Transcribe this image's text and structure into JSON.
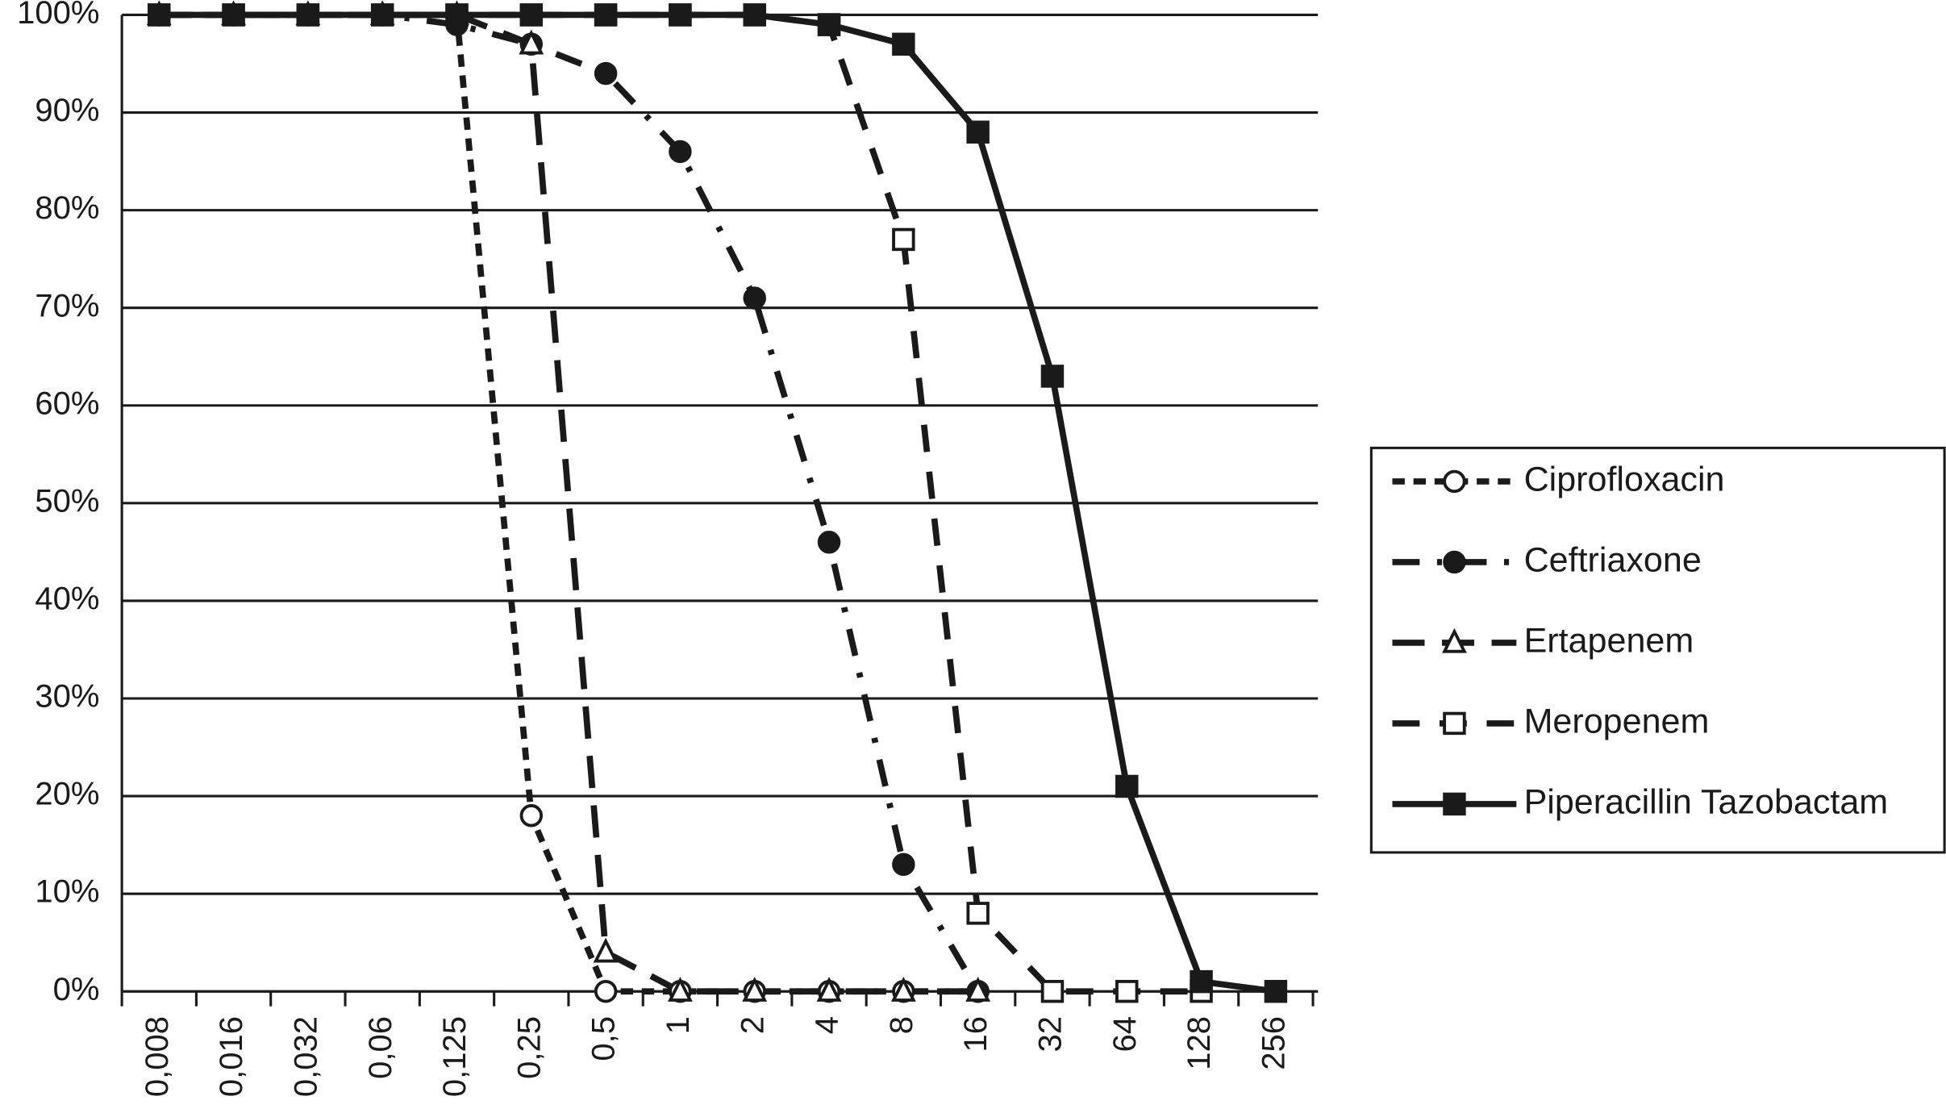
{
  "chart_data": {
    "type": "line",
    "categories": [
      "0,008",
      "0,016",
      "0,032",
      "0,06",
      "0,125",
      "0,25",
      "0,5",
      "1",
      "2",
      "4",
      "8",
      "16",
      "32",
      "64",
      "128",
      "256"
    ],
    "ylim": [
      0,
      100
    ],
    "yticks": [
      {
        "value": 0,
        "label": "0%"
      },
      {
        "value": 10,
        "label": "10%"
      },
      {
        "value": 20,
        "label": "20%"
      },
      {
        "value": 30,
        "label": "30%"
      },
      {
        "value": 40,
        "label": "40%"
      },
      {
        "value": 50,
        "label": "50%"
      },
      {
        "value": 60,
        "label": "60%"
      },
      {
        "value": 70,
        "label": "70%"
      },
      {
        "value": 80,
        "label": "80%"
      },
      {
        "value": 90,
        "label": "90%"
      },
      {
        "value": 100,
        "label": "100%"
      }
    ],
    "grid": true,
    "legend": "right",
    "series": [
      {
        "name": "Ciprofloxacin",
        "color": "#1a1a1a",
        "style": "short-dash",
        "marker": "circle-open",
        "values": [
          100,
          100,
          100,
          100,
          100,
          18,
          0,
          0,
          0,
          0,
          0,
          0,
          null,
          null,
          null,
          null
        ]
      },
      {
        "name": "Ceftriaxone",
        "color": "#1a1a1a",
        "style": "dash-dot",
        "marker": "circle-filled",
        "values": [
          100,
          100,
          100,
          100,
          99,
          97,
          94,
          86,
          71,
          46,
          13,
          0,
          null,
          null,
          null,
          null
        ]
      },
      {
        "name": "Ertapenem",
        "color": "#1a1a1a",
        "style": "long-dash",
        "marker": "triangle-open",
        "values": [
          100,
          100,
          100,
          100,
          100,
          97,
          4,
          0,
          0,
          0,
          0,
          0,
          null,
          null,
          null,
          null
        ]
      },
      {
        "name": "Meropenem",
        "color": "#1a1a1a",
        "style": "dash",
        "marker": "square-open",
        "values": [
          100,
          100,
          100,
          100,
          100,
          100,
          100,
          100,
          100,
          99,
          77,
          8,
          0,
          0,
          0,
          null
        ]
      },
      {
        "name": "Piperacillin Tazobactam",
        "color": "#1a1a1a",
        "style": "solid",
        "marker": "square-filled",
        "values": [
          100,
          100,
          100,
          100,
          100,
          100,
          100,
          100,
          100,
          99,
          97,
          88,
          63,
          21,
          1,
          0
        ]
      }
    ]
  }
}
